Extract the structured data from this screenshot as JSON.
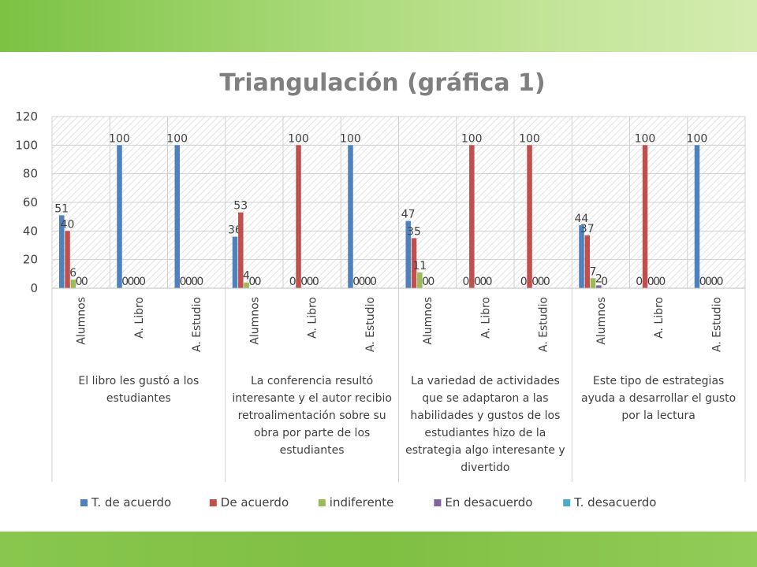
{
  "chart_data": {
    "type": "bar",
    "title": "Triangulación (gráfica 1)",
    "ylim": [
      0,
      120
    ],
    "yticks": [
      0,
      20,
      40,
      60,
      80,
      100,
      120
    ],
    "grid": true,
    "legend_position": "bottom",
    "groups": [
      {
        "label": "El libro les gustó a los estudiantes",
        "categories": [
          "Alumnos",
          "A. Libro",
          "A. Estudio"
        ],
        "series_values": [
          [
            51,
            100,
            100
          ],
          [
            40,
            0,
            0
          ],
          [
            6,
            0,
            0
          ],
          [
            0,
            0,
            0
          ],
          [
            0,
            0,
            0
          ]
        ]
      },
      {
        "label": "La conferencia resultó interesante y el autor recibio retroalimentación sobre su  obra por parte de los estudiantes",
        "categories": [
          "Alumnos",
          "A. Libro",
          "A. Estudio"
        ],
        "series_values": [
          [
            36,
            0,
            100
          ],
          [
            53,
            100,
            0
          ],
          [
            4,
            0,
            0
          ],
          [
            0,
            0,
            0
          ],
          [
            0,
            0,
            0
          ]
        ]
      },
      {
        "label": "La variedad de actividades que se adaptaron a las habilidades y gustos de los estudiantes hizo de la estrategia algo interesante y divertido",
        "categories": [
          "Alumnos",
          "A. Libro",
          "A. Estudio"
        ],
        "series_values": [
          [
            47,
            0,
            0
          ],
          [
            35,
            100,
            100
          ],
          [
            11,
            0,
            0
          ],
          [
            0,
            0,
            0
          ],
          [
            0,
            0,
            0
          ]
        ]
      },
      {
        "label": "Este tipo de estrategias ayuda a desarrollar el gusto por la lectura",
        "categories": [
          "Alumnos",
          "A. Libro",
          "A. Estudio"
        ],
        "series_values": [
          [
            44,
            0,
            100
          ],
          [
            37,
            100,
            0
          ],
          [
            7,
            0,
            0
          ],
          [
            2,
            0,
            0
          ],
          [
            0,
            0,
            0
          ]
        ]
      }
    ],
    "series": [
      {
        "name": "T. de acuerdo",
        "color": "#4f81bd"
      },
      {
        "name": "De acuerdo",
        "color": "#c0504d"
      },
      {
        "name": "indiferente",
        "color": "#9bbb59"
      },
      {
        "name": "En desacuerdo",
        "color": "#8064a2"
      },
      {
        "name": "T. desacuerdo",
        "color": "#4bacc6"
      }
    ]
  }
}
